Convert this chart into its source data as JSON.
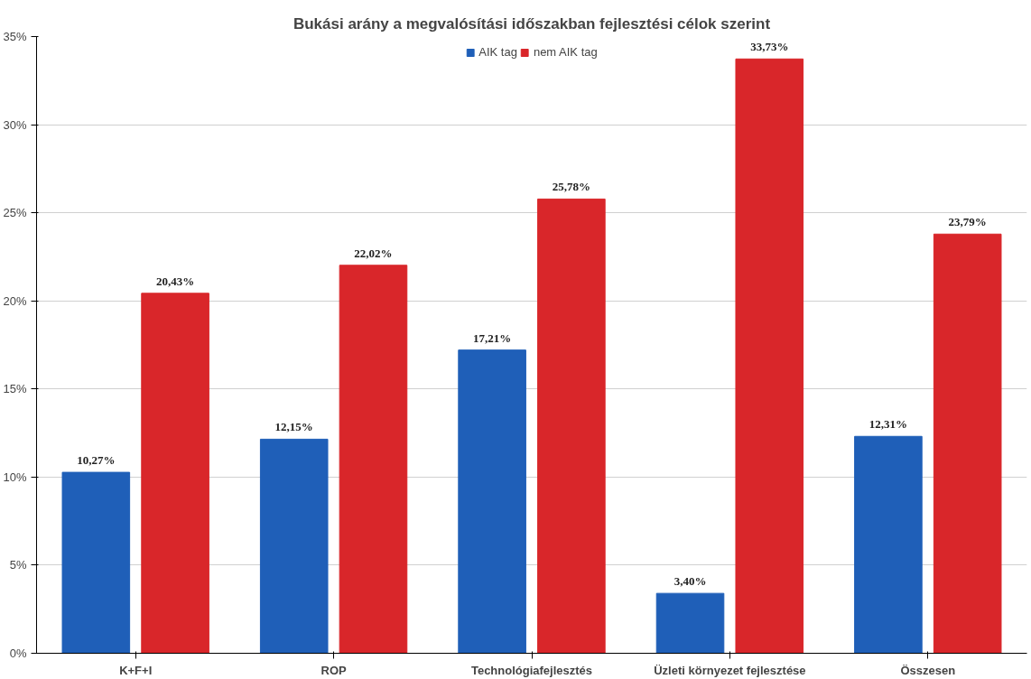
{
  "chart_data": {
    "type": "bar",
    "title": "Bukási arány a megvalósítási időszakban fejlesztési célok szerint",
    "categories": [
      "K+F+I",
      "ROP",
      "Technológiafejlesztés",
      "Üzleti környezet fejlesztése",
      "Összesen"
    ],
    "series": [
      {
        "name": "AIK tag",
        "color": "#1f5fb8",
        "values": [
          10.27,
          12.15,
          17.21,
          3.4,
          12.31
        ],
        "value_labels": [
          "10,27%",
          "12,15%",
          "17,21%",
          "3,40%",
          "12,31%"
        ]
      },
      {
        "name": "nem AIK tag",
        "color": "#d9262a",
        "values": [
          20.43,
          22.02,
          25.78,
          33.73,
          23.79
        ],
        "value_labels": [
          "20,43%",
          "22,02%",
          "25,78%",
          "33,73%",
          "23,79%"
        ]
      }
    ],
    "ylim": [
      0,
      35
    ],
    "yticks": [
      {
        "value": 0,
        "label": "0%"
      },
      {
        "value": 5,
        "label": "5%"
      },
      {
        "value": 10,
        "label": "10%"
      },
      {
        "value": 15,
        "label": "15%"
      },
      {
        "value": 20,
        "label": "20%"
      },
      {
        "value": 25,
        "label": "25%"
      },
      {
        "value": 30,
        "label": "30%"
      },
      {
        "value": 35,
        "label": "35%"
      }
    ],
    "grid": "y",
    "legend": "top"
  }
}
